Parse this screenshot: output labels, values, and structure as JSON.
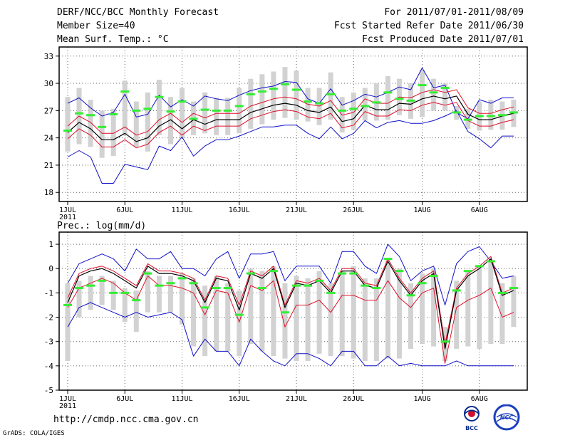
{
  "header": {
    "title": "DERF/NCC/BCC Monthly Forecast",
    "member_size": "Member Size=40",
    "variable_top": "Mean Surf. Temp.: °C",
    "valid_period": "For 2011/07/01-2011/08/09",
    "start_date": "Fcst Started Refer Date 2011/06/30",
    "produced_date": "Fcst Produced Date 2011/07/01"
  },
  "variable_bottom": "Prec.: log(mm/d)",
  "footer": {
    "url": "http://cmdp.ncc.cma.gov.cn",
    "credit": "GrADS: COLA/IGES",
    "logo_bcc": "BCC",
    "logo_ncc": "NCC"
  },
  "colors": {
    "mean": "#000000",
    "spread": "#e0102a",
    "extreme": "#1010c8",
    "observed": "#33ee33",
    "box": "#d2d2d2",
    "grid": "#666666"
  },
  "chart_data": [
    {
      "type": "line",
      "title": "Mean Surf. Temp.: °C",
      "ylabel": "°C",
      "ylim": [
        17,
        34
      ],
      "yticks": [
        18,
        21,
        24,
        27,
        30,
        33
      ],
      "x_tick_labels": [
        "1JUL",
        "6JUL",
        "11JUL",
        "16JUL",
        "21JUL",
        "26JUL",
        "1AUG",
        "6AUG"
      ],
      "x_tick_days": [
        1,
        6,
        11,
        16,
        21,
        26,
        32,
        37
      ],
      "year_label": "2011",
      "days": [
        1,
        2,
        3,
        4,
        5,
        6,
        7,
        8,
        9,
        10,
        11,
        12,
        13,
        14,
        15,
        16,
        17,
        18,
        19,
        20,
        21,
        22,
        23,
        24,
        25,
        26,
        27,
        28,
        29,
        30,
        31,
        32,
        33,
        34,
        35,
        36,
        37,
        38,
        39,
        40
      ],
      "series": [
        {
          "name": "ensemble mean",
          "values": [
            24.6,
            25.7,
            25.0,
            23.8,
            23.8,
            24.5,
            23.6,
            24.0,
            25.3,
            26.0,
            25.0,
            26.0,
            25.5,
            26.0,
            26.0,
            26.0,
            26.8,
            27.2,
            27.6,
            27.8,
            27.6,
            27.0,
            26.8,
            27.4,
            25.8,
            26.1,
            27.6,
            27.1,
            27.1,
            27.8,
            27.7,
            28.3,
            28.6,
            28.3,
            28.6,
            26.6,
            26.0,
            26.0,
            26.4,
            26.7
          ]
        },
        {
          "name": "member spread upper",
          "values": [
            25.3,
            26.4,
            25.7,
            24.5,
            24.5,
            25.2,
            24.3,
            24.7,
            26.0,
            26.7,
            25.7,
            26.7,
            26.2,
            26.7,
            26.7,
            26.7,
            27.5,
            27.9,
            28.3,
            28.5,
            28.3,
            27.7,
            27.5,
            28.1,
            26.5,
            26.8,
            28.3,
            27.8,
            27.8,
            28.5,
            28.4,
            29.0,
            29.3,
            29.0,
            29.3,
            27.3,
            26.7,
            26.7,
            27.1,
            27.4
          ]
        },
        {
          "name": "member spread lower",
          "values": [
            23.9,
            25.0,
            24.3,
            23.0,
            23.0,
            23.8,
            22.9,
            23.3,
            24.6,
            25.3,
            24.3,
            25.3,
            24.8,
            25.3,
            25.3,
            25.3,
            26.1,
            26.5,
            26.9,
            27.1,
            26.9,
            26.3,
            26.1,
            26.7,
            25.1,
            25.4,
            26.9,
            26.4,
            26.4,
            27.1,
            27.0,
            27.6,
            27.9,
            27.6,
            27.9,
            25.9,
            25.3,
            25.3,
            25.7,
            26.0
          ]
        },
        {
          "name": "ensemble max",
          "values": [
            27.8,
            28.4,
            27.3,
            26.4,
            26.8,
            28.8,
            26.3,
            26.6,
            28.7,
            27.4,
            28.2,
            27.5,
            28.6,
            28.3,
            28.1,
            28.7,
            29.2,
            29.5,
            29.7,
            30.2,
            30.1,
            28.3,
            27.8,
            29.4,
            27.6,
            28.1,
            28.8,
            28.5,
            29.0,
            29.6,
            29.3,
            31.7,
            29.5,
            29.8,
            26.8,
            26.1,
            28.2,
            27.8,
            28.4,
            28.4
          ]
        },
        {
          "name": "ensemble min",
          "values": [
            21.9,
            22.6,
            21.9,
            19.0,
            19.0,
            21.1,
            20.8,
            20.5,
            23.1,
            22.6,
            24.1,
            22.0,
            23.1,
            23.8,
            23.8,
            24.2,
            24.7,
            25.2,
            25.2,
            25.4,
            25.4,
            24.5,
            23.9,
            25.2,
            23.9,
            24.5,
            25.9,
            25.1,
            25.7,
            25.9,
            25.6,
            25.6,
            25.9,
            26.4,
            27.0,
            24.7,
            23.9,
            22.9,
            24.2,
            24.2
          ]
        },
        {
          "name": "observed",
          "values": [
            24.8,
            26.7,
            26.5,
            25.2,
            26.6,
            29.1,
            27.0,
            27.2,
            28.5,
            26.9,
            28.0,
            26.1,
            27.1,
            27.0,
            27.0,
            27.5,
            28.8,
            29.1,
            29.4,
            29.9,
            29.3,
            28.0,
            27.8,
            28.8,
            27.0,
            27.2,
            27.5,
            27.9,
            29.0,
            28.3,
            28.1,
            29.8,
            29.0,
            29.5,
            26.8,
            26.0,
            26.4,
            26.4,
            26.5,
            26.8
          ]
        },
        {
          "name": "ensemble box upper",
          "values": [
            28.5,
            29.5,
            28.2,
            27.0,
            27.2,
            30.3,
            28.0,
            29.0,
            30.4,
            28.5,
            29.5,
            28.0,
            29.0,
            28.4,
            28.4,
            29.5,
            30.5,
            31.0,
            31.3,
            31.8,
            31.4,
            29.5,
            29.5,
            31.2,
            28.5,
            29.0,
            29.5,
            30.0,
            30.8,
            30.5,
            30.0,
            31.5,
            30.5,
            30.0,
            27.5,
            27.2,
            28.0,
            28.2,
            28.0,
            28.2
          ]
        },
        {
          "name": "ensemble box lower",
          "values": [
            22.5,
            23.3,
            23.0,
            21.8,
            22.0,
            24.3,
            23.0,
            22.5,
            24.3,
            23.3,
            24.0,
            24.3,
            24.5,
            24.3,
            24.3,
            24.5,
            25.0,
            25.5,
            26.0,
            26.2,
            26.0,
            25.8,
            25.4,
            26.0,
            24.6,
            24.9,
            25.9,
            25.9,
            26.0,
            26.5,
            26.1,
            26.3,
            27.0,
            27.0,
            26.0,
            25.0,
            24.8,
            24.9,
            24.9,
            25.2
          ]
        }
      ]
    },
    {
      "type": "line",
      "title": "Prec.: log(mm/d)",
      "ylabel": "log(mm/d)",
      "ylim": [
        -5,
        1.5
      ],
      "yticks": [
        -5,
        -4,
        -3,
        -2,
        -1,
        0,
        1
      ],
      "x_tick_labels": [
        "1JUL",
        "6JUL",
        "11JUL",
        "16JUL",
        "21JUL",
        "26JUL",
        "1AUG",
        "6AUG"
      ],
      "x_tick_days": [
        1,
        6,
        11,
        16,
        21,
        26,
        32,
        37
      ],
      "year_label": "2011",
      "days": [
        1,
        2,
        3,
        4,
        5,
        6,
        7,
        8,
        9,
        10,
        11,
        12,
        13,
        14,
        15,
        16,
        17,
        18,
        19,
        20,
        21,
        22,
        23,
        24,
        25,
        26,
        27,
        28,
        29,
        30,
        31,
        32,
        33,
        34,
        35,
        36,
        37,
        38,
        39,
        40
      ],
      "series": [
        {
          "name": "ensemble mean",
          "values": [
            -1.4,
            -0.3,
            -0.1,
            0.0,
            -0.2,
            -0.5,
            -0.8,
            0.1,
            -0.2,
            -0.2,
            -0.3,
            -0.5,
            -1.4,
            -0.4,
            -0.5,
            -1.7,
            -0.2,
            -0.4,
            0.0,
            -1.6,
            -0.6,
            -0.7,
            -0.5,
            -1.0,
            -0.1,
            -0.1,
            -0.7,
            -0.8,
            0.3,
            -0.5,
            -1.1,
            -0.5,
            -0.2,
            -3.3,
            -0.9,
            -0.3,
            0.0,
            0.4,
            -1.1,
            -0.9
          ]
        },
        {
          "name": "member spread upper",
          "values": [
            -1.2,
            -0.2,
            0.0,
            0.1,
            -0.1,
            -0.4,
            -0.7,
            0.2,
            -0.1,
            -0.1,
            -0.2,
            -0.4,
            -1.3,
            -0.3,
            -0.4,
            -1.5,
            -0.1,
            -0.3,
            0.1,
            -1.5,
            -0.5,
            -0.6,
            -0.4,
            -0.9,
            0.0,
            0.0,
            -0.6,
            -0.7,
            0.4,
            -0.4,
            -1.0,
            -0.4,
            -0.1,
            -3.1,
            -0.8,
            -0.2,
            0.1,
            0.5,
            -1.0,
            -0.8
          ]
        },
        {
          "name": "member spread lower",
          "values": [
            -1.6,
            -0.8,
            -0.6,
            -0.4,
            -0.6,
            -1.0,
            -1.3,
            -0.3,
            -0.7,
            -0.7,
            -0.8,
            -1.0,
            -1.9,
            -0.9,
            -1.0,
            -2.2,
            -0.7,
            -0.9,
            -0.5,
            -2.4,
            -1.5,
            -1.5,
            -1.3,
            -1.8,
            -1.1,
            -1.1,
            -1.3,
            -1.3,
            -0.5,
            -1.2,
            -1.6,
            -1.0,
            -0.8,
            -3.9,
            -1.6,
            -1.3,
            -1.1,
            -0.8,
            -2.0,
            -1.8
          ]
        },
        {
          "name": "ensemble max",
          "values": [
            -0.6,
            0.2,
            0.4,
            0.6,
            0.4,
            -0.1,
            0.8,
            0.4,
            0.4,
            0.7,
            0.0,
            0.0,
            -0.3,
            0.4,
            0.7,
            -0.4,
            0.6,
            0.6,
            0.7,
            -0.5,
            0.1,
            0.1,
            0.1,
            -0.6,
            0.7,
            0.7,
            0.1,
            -0.2,
            1.0,
            0.5,
            -0.5,
            -0.1,
            0.1,
            -1.5,
            0.2,
            0.7,
            0.9,
            0.3,
            -0.4,
            -0.3
          ]
        },
        {
          "name": "ensemble min",
          "values": [
            -2.4,
            -1.6,
            -1.4,
            -1.6,
            -1.8,
            -2.0,
            -1.8,
            -2.0,
            -1.9,
            -1.8,
            -2.1,
            -3.6,
            -2.9,
            -3.4,
            -3.4,
            -4.0,
            -2.9,
            -3.4,
            -3.8,
            -4.0,
            -3.5,
            -3.5,
            -3.7,
            -4.0,
            -3.4,
            -3.4,
            -4.0,
            -4.0,
            -3.6,
            -4.0,
            -3.9,
            -4.0,
            -4.0,
            -4.0,
            -3.8,
            -4.0,
            -4.0,
            -4.0,
            -4.0,
            -4.0
          ]
        },
        {
          "name": "observed",
          "values": [
            -1.5,
            -0.8,
            -0.7,
            -0.5,
            -1.0,
            -1.0,
            -1.3,
            -0.2,
            -0.7,
            -0.6,
            -0.4,
            -0.6,
            -1.6,
            -0.8,
            -0.8,
            -1.9,
            -0.2,
            -0.8,
            -0.1,
            -1.8,
            -0.7,
            -0.7,
            -0.5,
            -1.0,
            -0.2,
            -0.2,
            -0.7,
            -0.8,
            0.4,
            -0.1,
            -1.1,
            -0.6,
            -0.3,
            -3.0,
            -0.9,
            -0.1,
            0.1,
            0.3,
            -1.0,
            -0.8
          ]
        },
        {
          "name": "ensemble box upper",
          "values": [
            -0.6,
            -0.5,
            -0.3,
            -0.3,
            -0.5,
            -0.8,
            -0.9,
            -0.1,
            -0.3,
            -0.3,
            -0.2,
            -0.4,
            -0.7,
            -0.3,
            -0.6,
            -0.9,
            0.0,
            -0.1,
            0.1,
            -0.6,
            -0.3,
            -0.4,
            -0.1,
            -0.6,
            -0.1,
            0.1,
            -0.4,
            -0.4,
            0.4,
            0.0,
            -0.6,
            -0.2,
            0.0,
            -2.4,
            -0.5,
            -0.1,
            0.1,
            0.3,
            -0.6,
            -0.3
          ]
        },
        {
          "name": "ensemble box lower",
          "values": [
            -3.8,
            -2.0,
            -1.7,
            -1.5,
            -1.7,
            -2.2,
            -2.6,
            -1.8,
            -1.8,
            -1.8,
            -2.3,
            -3.2,
            -3.6,
            -3.4,
            -3.4,
            -3.6,
            -3.1,
            -3.4,
            -3.6,
            -3.7,
            -3.8,
            -3.8,
            -3.5,
            -3.6,
            -3.6,
            -3.7,
            -3.8,
            -3.8,
            -3.7,
            -3.7,
            -3.3,
            -3.1,
            -3.2,
            -3.8,
            -3.3,
            -3.2,
            -3.3,
            -3.1,
            -3.1,
            -2.4
          ]
        }
      ]
    }
  ]
}
